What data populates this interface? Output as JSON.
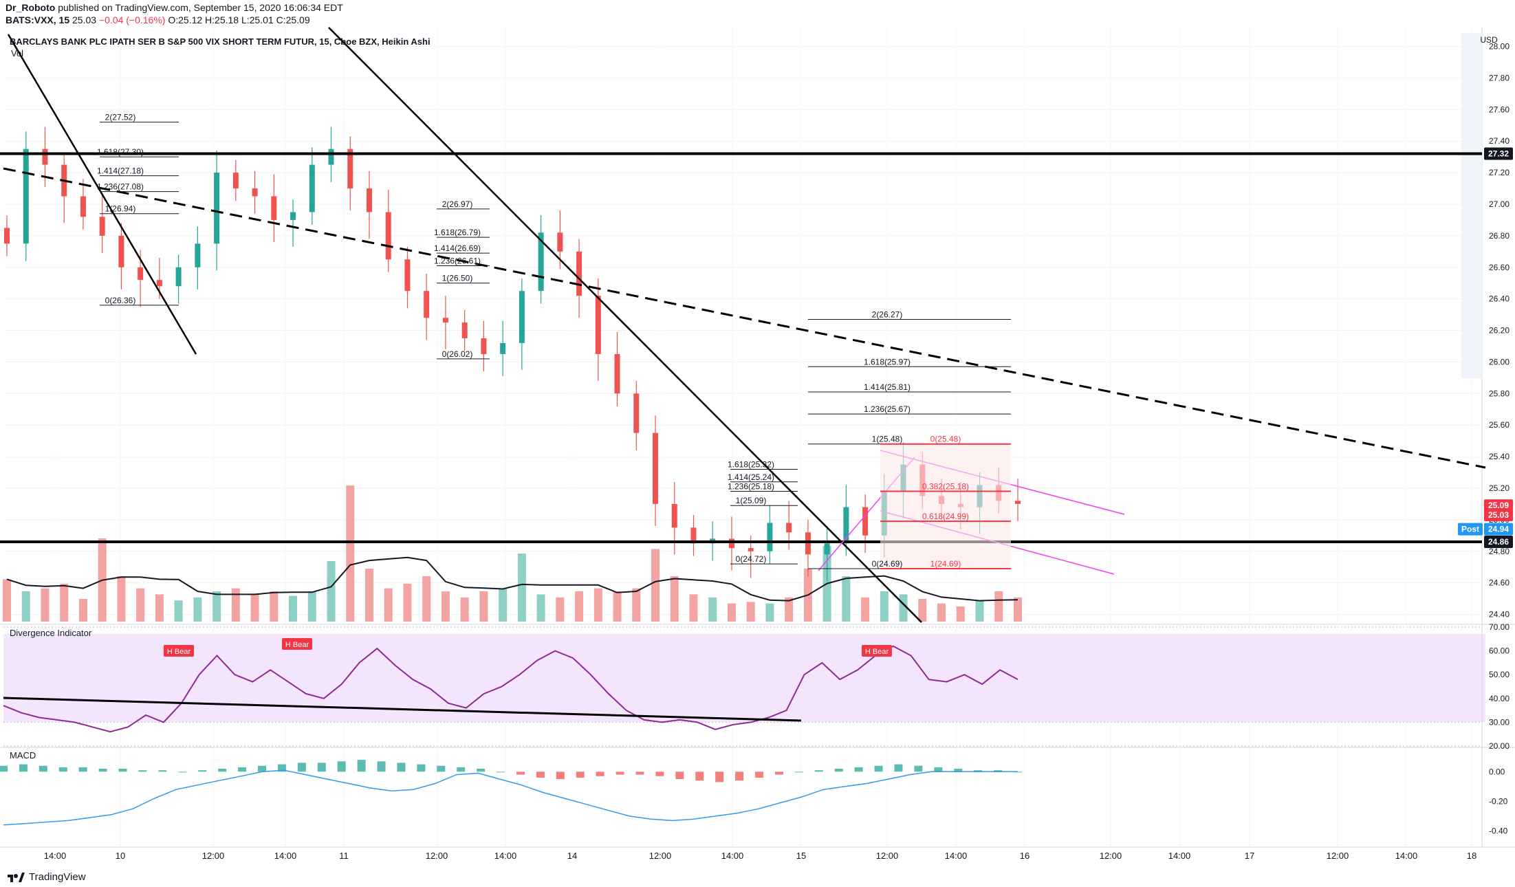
{
  "header": {
    "author": "Dr_Roboto",
    "published": "published on TradingView.com, September 15, 2020 16:06:34 EDT",
    "symbol_line": "BATS:VXX, 15",
    "last": "25.03",
    "change": "−0.04 (−0.16%)",
    "ohlc": "O:25.12 H:25.18 L:25.01 C:25.09"
  },
  "brand": "TradingView",
  "colors": {
    "up": "#26a69a",
    "down": "#ef5350",
    "vol_up": "#8ecfc6",
    "vol_down": "#f4a3a3",
    "osc_bg": "#f3e5fb",
    "osc_line": "#8e2a94",
    "macd_line": "#2f9bec",
    "fan_pink": "#f23ff5",
    "tag_dark": "#131722",
    "tag_red": "#f23645",
    "tag_blue": "#2196f3"
  },
  "chart_data": [
    {
      "type": "candlestick",
      "title": "BARCLAYS BANK PLC IPATH SER B S&P 500 VIX SHORT TERM FUTUR, 15, Cboe BZX, Heikin Ashi",
      "subtitle": "Vol",
      "currency": "USD",
      "ylim": [
        24.35,
        28.12
      ],
      "y_ticks": [
        "28.00",
        "27.80",
        "27.60",
        "27.40",
        "27.20",
        "27.00",
        "26.80",
        "26.60",
        "26.40",
        "26.20",
        "26.00",
        "25.80",
        "25.60",
        "25.40",
        "25.20",
        "25.00",
        "24.80",
        "24.60",
        "24.40"
      ],
      "x_ticks": [
        "14:00",
        "10",
        "12:00",
        "14:00",
        "11",
        "12:00",
        "14:00",
        "14",
        "12:00",
        "14:00",
        "15",
        "12:00",
        "14:00",
        "16",
        "12:00",
        "14:00",
        "17",
        "12:00",
        "14:00",
        "18"
      ],
      "close_path": [
        26.75,
        27.35,
        27.25,
        27.05,
        26.92,
        26.8,
        26.6,
        26.52,
        26.48,
        26.6,
        26.75,
        27.2,
        27.1,
        27.05,
        26.9,
        26.95,
        27.25,
        27.35,
        27.1,
        26.95,
        26.65,
        26.45,
        26.28,
        26.25,
        26.15,
        26.05,
        26.12,
        26.45,
        26.82,
        26.7,
        26.42,
        26.05,
        25.8,
        25.55,
        25.1,
        24.95,
        24.85,
        24.88,
        24.82,
        24.8,
        24.98,
        24.92,
        24.78,
        24.85,
        25.08,
        24.9,
        25.18,
        25.35,
        25.15,
        25.1,
        25.08,
        25.22,
        25.12,
        25.1
      ],
      "volume": [
        0.28,
        0.2,
        0.22,
        0.25,
        0.15,
        0.55,
        0.3,
        0.22,
        0.18,
        0.14,
        0.16,
        0.2,
        0.22,
        0.18,
        0.2,
        0.17,
        0.2,
        0.4,
        0.9,
        0.35,
        0.22,
        0.25,
        0.3,
        0.2,
        0.16,
        0.2,
        0.22,
        0.45,
        0.18,
        0.16,
        0.2,
        0.22,
        0.2,
        0.22,
        0.48,
        0.3,
        0.18,
        0.16,
        0.12,
        0.13,
        0.12,
        0.16,
        0.35,
        0.5,
        0.3,
        0.16,
        0.2,
        0.18,
        0.15,
        0.12,
        0.1,
        0.14,
        0.2,
        0.16
      ],
      "lines": [
        {
          "label": "horizontal support",
          "from": [
            0,
            24.86
          ],
          "to": [
            1,
            24.86
          ]
        },
        {
          "label": "horizontal resistance",
          "from": [
            0,
            27.32
          ],
          "to": [
            1,
            27.32
          ]
        }
      ],
      "fib_sets": [
        {
          "levels": [
            "2(27.52)",
            "1.618(27.30)",
            "1.414(27.18)",
            "1.236(27.08)",
            "1(26.94)",
            "0(26.36)"
          ],
          "values": [
            27.52,
            27.3,
            27.18,
            27.08,
            26.94,
            26.36
          ]
        },
        {
          "levels": [
            "2(26.97)",
            "1.618(26.79)",
            "1.414(26.69)",
            "1.236(26.61)",
            "1(26.50)",
            "0(26.02)"
          ],
          "values": [
            26.97,
            26.79,
            26.69,
            26.61,
            26.5,
            26.02
          ]
        },
        {
          "levels": [
            "1.618(25.32)",
            "1.414(25.24)",
            "1.236(25.18)",
            "1(25.09)",
            "0(24.72)"
          ],
          "values": [
            25.32,
            25.24,
            25.18,
            25.09,
            24.72
          ]
        },
        {
          "levels": [
            "2(26.27)",
            "1.618(25.97)",
            "1.414(25.81)",
            "1.236(25.67)",
            "1(25.48)",
            "0(24.69)"
          ],
          "values": [
            26.27,
            25.97,
            25.81,
            25.67,
            25.48,
            24.69
          ]
        }
      ],
      "retracement_labels": [
        "0(25.48)",
        "0.382(25.18)",
        "0.618(24.99)",
        "1(24.69)"
      ],
      "retracement_values": [
        25.48,
        25.18,
        24.99,
        24.69
      ],
      "price_tags": [
        {
          "label": "27.32",
          "value": 27.32,
          "kind": "dark"
        },
        {
          "label": "25.09",
          "value": 25.09,
          "kind": "red"
        },
        {
          "label": "25.03",
          "value": 25.03,
          "kind": "red"
        },
        {
          "label": "Post",
          "value": 24.94,
          "kind": "blue_label"
        },
        {
          "label": "24.94",
          "value": 24.94,
          "kind": "blue"
        },
        {
          "label": "24.86",
          "value": 24.86,
          "kind": "dark"
        }
      ]
    },
    {
      "type": "line",
      "title": "Divergence Indicator",
      "ylim": [
        20,
        70
      ],
      "y_ticks": [
        "70.00",
        "60.00",
        "50.00",
        "40.00",
        "30.00",
        "20.00"
      ],
      "values": [
        37,
        34,
        32,
        31,
        30,
        28,
        26,
        28,
        33,
        30,
        38,
        50,
        58,
        50,
        47,
        52,
        47,
        42,
        40,
        46,
        55,
        61,
        54,
        48,
        44,
        38,
        36,
        42,
        45,
        50,
        56,
        60,
        57,
        50,
        42,
        35,
        31,
        30,
        31,
        30,
        27,
        29,
        30,
        32,
        35,
        50,
        55,
        48,
        52,
        58,
        62,
        58,
        48,
        47,
        50,
        46,
        52,
        48
      ],
      "signals": [
        "H Bear",
        "H Bear",
        "H Bear"
      ]
    },
    {
      "type": "bar",
      "title": "MACD",
      "ylim": [
        -0.5,
        0.15
      ],
      "y_ticks": [
        "0.00",
        "-0.20",
        "-0.40"
      ],
      "histogram": [
        0.04,
        0.05,
        0.04,
        0.03,
        0.03,
        0.02,
        0.02,
        0.01,
        0.01,
        0.0,
        0.01,
        0.02,
        0.03,
        0.04,
        0.05,
        0.06,
        0.06,
        0.07,
        0.08,
        0.07,
        0.06,
        0.05,
        0.04,
        0.03,
        0.02,
        0.0,
        -0.02,
        -0.04,
        -0.05,
        -0.04,
        -0.03,
        -0.02,
        -0.02,
        -0.03,
        -0.05,
        -0.06,
        -0.07,
        -0.06,
        -0.04,
        -0.02,
        0.0,
        0.01,
        0.02,
        0.03,
        0.04,
        0.05,
        0.04,
        0.03,
        0.02,
        0.01,
        0.01,
        0.0
      ],
      "macd_line": [
        -0.36,
        -0.35,
        -0.34,
        -0.33,
        -0.31,
        -0.29,
        -0.25,
        -0.18,
        -0.12,
        -0.09,
        -0.06,
        -0.03,
        0.0,
        0.01,
        -0.02,
        -0.05,
        -0.08,
        -0.11,
        -0.13,
        -0.12,
        -0.08,
        -0.02,
        -0.01,
        -0.05,
        -0.09,
        -0.14,
        -0.18,
        -0.22,
        -0.26,
        -0.3,
        -0.32,
        -0.33,
        -0.32,
        -0.3,
        -0.28,
        -0.25,
        -0.21,
        -0.17,
        -0.12,
        -0.1,
        -0.08,
        -0.05,
        -0.02,
        0.0,
        0.0,
        0.0,
        0.0,
        0.0
      ]
    }
  ]
}
